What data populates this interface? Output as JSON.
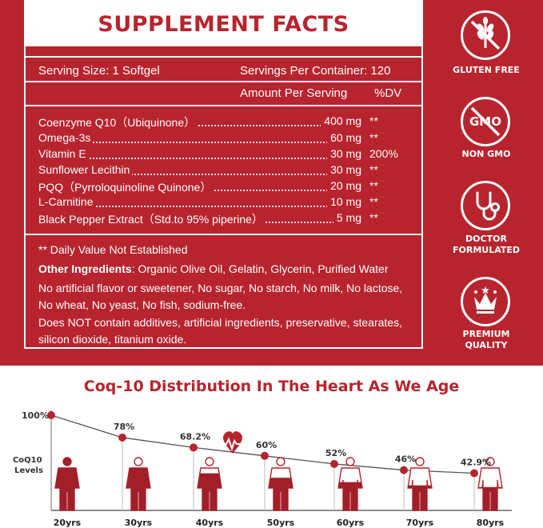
{
  "panel": {
    "title": "SUPPLEMENT FACTS",
    "serving_size": "Serving Size: 1 Softgel",
    "servings_per_container": "Servings Per Container: 120",
    "amount_header": "Amount Per Serving",
    "dv_header": "%DV",
    "ingredients": [
      {
        "name": "Coenzyme Q10（Ubiquinone）",
        "amount": "400 mg",
        "dv": "**"
      },
      {
        "name": "Omega-3s",
        "amount": "60 mg",
        "dv": "**"
      },
      {
        "name": "Vitamin E",
        "amount": "30 mg",
        "dv": "200%"
      },
      {
        "name": "Sunflower Lecithin",
        "amount": "30 mg",
        "dv": "**"
      },
      {
        "name": "PQQ（Pyrroloquinoline Quinone）",
        "amount": "20 mg",
        "dv": "**"
      },
      {
        "name": "L-Carnitine",
        "amount": "10 mg",
        "dv": "**"
      },
      {
        "name": "Black Pepper Extract（Std.to 95% piperine）",
        "amount": "5 mg",
        "dv": "**"
      }
    ],
    "dv_note": "** Daily Value Not Established",
    "other_label": "Other Ingredients",
    "other_text": ": Organic Olive Oil, Gelatin, Glycerin, Purified Water",
    "free_from": "No artificial flavor or sweetener, No sugar, No starch, No milk, No lactose, No wheat, No yeast, No fish, sodium-free.",
    "not_contain": "Does NOT contain additives, artificial ingredients, preservative, stearates, silicon dioxide, titanium oxide."
  },
  "badges": [
    {
      "icon": "wheat-crossed-icon",
      "label": "GLUTEN FREE"
    },
    {
      "icon": "gmo-crossed-icon",
      "label": "NON GMO",
      "icon_text": "GMO"
    },
    {
      "icon": "stethoscope-icon",
      "label": "DOCTOR FORMULATED"
    },
    {
      "icon": "crown-icon",
      "label": "PREMIUM QUALITY"
    }
  ],
  "colors": {
    "brand_red": "#b8242e",
    "dark_red": "#a01f28",
    "white": "#ffffff"
  },
  "chart_data": {
    "type": "line",
    "title": "Coq-10 Distribution In The Heart As We Age",
    "ylabel": "CoQ10 Levels",
    "categories": [
      "20yrs",
      "30yrs",
      "40yrs",
      "50yrs",
      "60yrs",
      "70yrs",
      "80yrs"
    ],
    "values": [
      100,
      78,
      68.2,
      60,
      52,
      46,
      42.9
    ],
    "value_labels": [
      "100%",
      "78%",
      "68.2%",
      "60%",
      "52%",
      "46%",
      "42.9%"
    ],
    "ylim": [
      0,
      100
    ],
    "grid": false,
    "annotation_icon": "heartbeat-icon"
  }
}
